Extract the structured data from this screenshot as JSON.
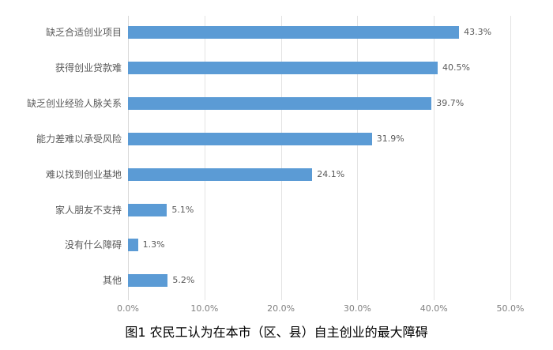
{
  "chart_data": {
    "type": "bar",
    "orientation": "horizontal",
    "title": "图1  农民工认为在本市（区、县）自主创业的最大障碍",
    "xlabel": "",
    "ylabel": "",
    "xlim": [
      0,
      50
    ],
    "grid": true,
    "legend": null,
    "categories": [
      "缺乏合适创业项目",
      "获得创业贷款难",
      "缺乏创业经验人脉关系",
      "能力差难以承受风险",
      "难以找到创业基地",
      "家人朋友不支持",
      "没有什么障碍",
      "其他"
    ],
    "values": [
      43.3,
      40.5,
      39.7,
      31.9,
      24.1,
      5.1,
      1.3,
      5.2
    ],
    "value_labels": [
      "43.3%",
      "40.5%",
      "39.7%",
      "31.9%",
      "24.1%",
      "5.1%",
      "1.3%",
      "5.2%"
    ],
    "ticks": [
      "0.0%",
      "10.0%",
      "20.0%",
      "30.0%",
      "40.0%",
      "50.0%"
    ],
    "bar_color": "#5b9bd5"
  }
}
